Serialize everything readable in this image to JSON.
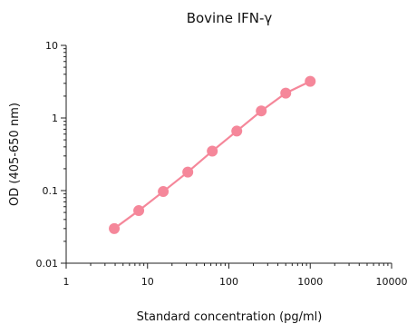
{
  "chart_data": {
    "type": "line",
    "title": "Bovine IFN-γ",
    "xlabel": "Standard concentration (pg/ml)",
    "ylabel": "OD (405-650 nm)",
    "x_scale": "log",
    "y_scale": "log",
    "xlim": [
      1,
      10000
    ],
    "ylim": [
      0.01,
      10
    ],
    "x_ticks": [
      1,
      10,
      100,
      1000,
      10000
    ],
    "x_tick_labels": [
      "1",
      "10",
      "100",
      "1000",
      "10000"
    ],
    "y_ticks": [
      0.01,
      0.1,
      1,
      10
    ],
    "y_tick_labels": [
      "0.01",
      "0.1",
      "1",
      "10"
    ],
    "grid": false,
    "series": [
      {
        "x": [
          3.9,
          7.8,
          15.6,
          31.25,
          62.5,
          125,
          250,
          500,
          1000
        ],
        "y": [
          0.03,
          0.053,
          0.097,
          0.18,
          0.35,
          0.66,
          1.25,
          2.2,
          3.2
        ]
      }
    ],
    "colors": {
      "series": "#f5879a",
      "axis": "#222222"
    }
  }
}
